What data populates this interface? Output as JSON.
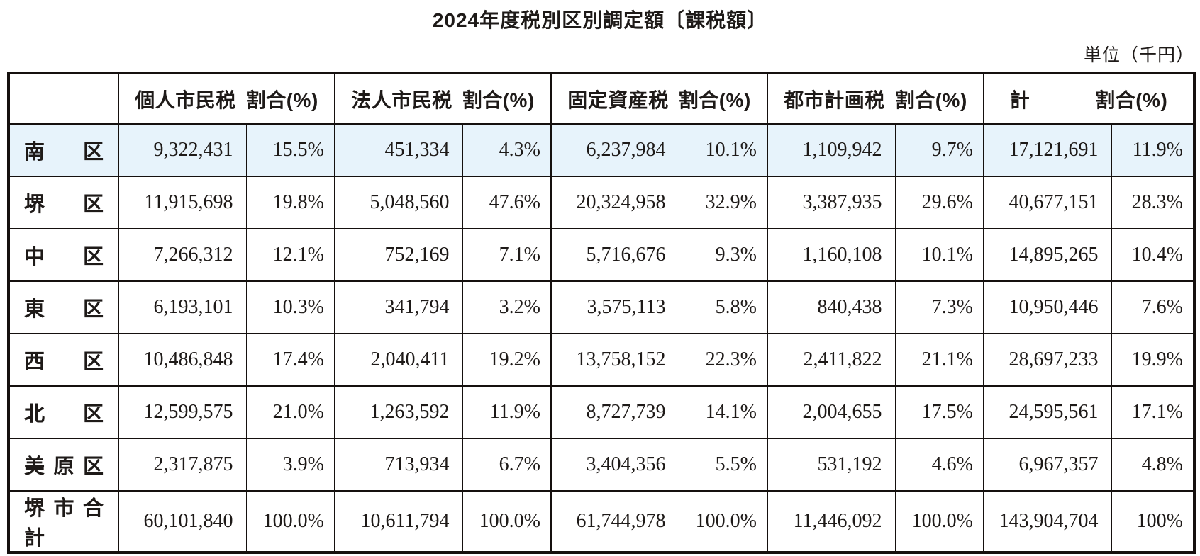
{
  "title": "2024年度税別区別調定額〔課税額〕",
  "unit_note": "単位（千円）",
  "colors": {
    "highlight_row_bg": "#e7f3fb",
    "border": "#15100e",
    "text": "#1e1a18",
    "page_bg": "#ffffff"
  },
  "table": {
    "corner_label": "",
    "column_groups": [
      {
        "tax": "個人市民税",
        "ratio": "割合(%)"
      },
      {
        "tax": "法人市民税",
        "ratio": "割合(%)"
      },
      {
        "tax": "固定資産税",
        "ratio": "割合(%)"
      },
      {
        "tax": "都市計画税",
        "ratio": "割合(%)"
      },
      {
        "tax": "計",
        "ratio": "割合(%)"
      }
    ],
    "rows": [
      {
        "ward": "南区",
        "highlight": true,
        "values": [
          "9,322,431",
          "15.5%",
          "451,334",
          "4.3%",
          "6,237,984",
          "10.1%",
          "1,109,942",
          "9.7%",
          "17,121,691",
          "11.9%"
        ]
      },
      {
        "ward": "堺区",
        "highlight": false,
        "values": [
          "11,915,698",
          "19.8%",
          "5,048,560",
          "47.6%",
          "20,324,958",
          "32.9%",
          "3,387,935",
          "29.6%",
          "40,677,151",
          "28.3%"
        ]
      },
      {
        "ward": "中区",
        "highlight": false,
        "values": [
          "7,266,312",
          "12.1%",
          "752,169",
          "7.1%",
          "5,716,676",
          "9.3%",
          "1,160,108",
          "10.1%",
          "14,895,265",
          "10.4%"
        ]
      },
      {
        "ward": "東区",
        "highlight": false,
        "values": [
          "6,193,101",
          "10.3%",
          "341,794",
          "3.2%",
          "3,575,113",
          "5.8%",
          "840,438",
          "7.3%",
          "10,950,446",
          "7.6%"
        ]
      },
      {
        "ward": "西区",
        "highlight": false,
        "values": [
          "10,486,848",
          "17.4%",
          "2,040,411",
          "19.2%",
          "13,758,152",
          "22.3%",
          "2,411,822",
          "21.1%",
          "28,697,233",
          "19.9%"
        ]
      },
      {
        "ward": "北区",
        "highlight": false,
        "values": [
          "12,599,575",
          "21.0%",
          "1,263,592",
          "11.9%",
          "8,727,739",
          "14.1%",
          "2,004,655",
          "17.5%",
          "24,595,561",
          "17.1%"
        ]
      },
      {
        "ward": "美原区",
        "highlight": false,
        "values": [
          "2,317,875",
          "3.9%",
          "713,934",
          "6.7%",
          "3,404,356",
          "5.5%",
          "531,192",
          "4.6%",
          "6,967,357",
          "4.8%"
        ]
      },
      {
        "ward": "堺市合計",
        "highlight": false,
        "values": [
          "60,101,840",
          "100.0%",
          "10,611,794",
          "100.0%",
          "61,744,978",
          "100.0%",
          "11,446,092",
          "100.0%",
          "143,904,704",
          "100%"
        ]
      }
    ]
  }
}
